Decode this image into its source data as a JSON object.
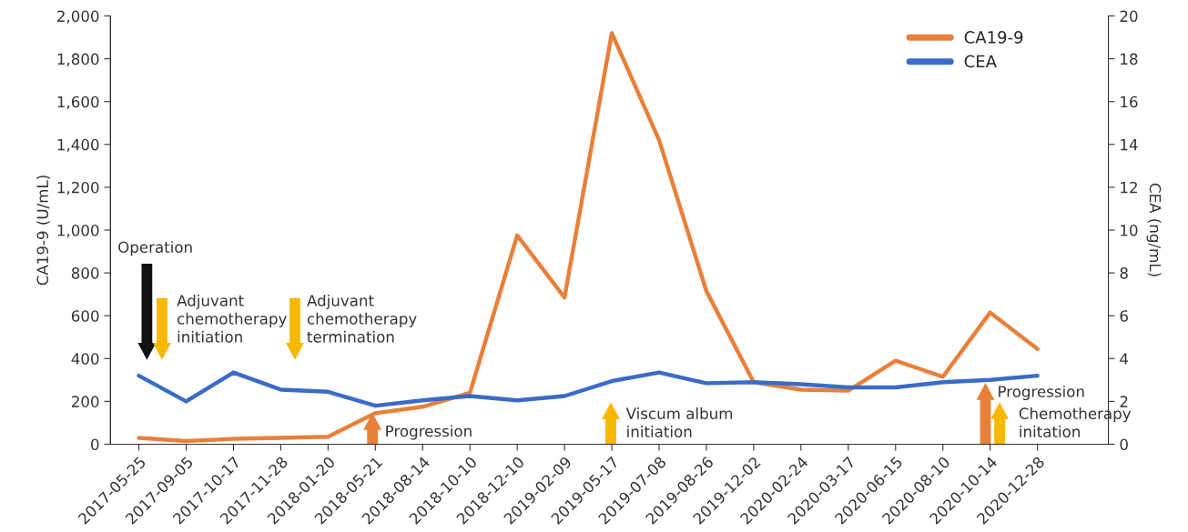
{
  "chart_data": {
    "type": "line",
    "categories": [
      "2017-05-25",
      "2017-09-05",
      "2017-10-17",
      "2017-11-28",
      "2018-01-20",
      "2018-05-21",
      "2018-08-14",
      "2018-10-10",
      "2018-12-10",
      "2019-02-09",
      "2019-05-17",
      "2019-07-08",
      "2019-08-26",
      "2019-12-02",
      "2020-02-24",
      "2020-03-17",
      "2020-06-15",
      "2020-08-10",
      "2020-10-14",
      "2020-12-28"
    ],
    "series": [
      {
        "name": "CA19-9",
        "color": "#e8803a",
        "values": [
          30,
          15,
          25,
          30,
          35,
          145,
          175,
          240,
          975,
          685,
          1920,
          1420,
          715,
          290,
          255,
          250,
          390,
          315,
          615,
          445
        ]
      },
      {
        "name": "CEA",
        "color": "#3a6bc8",
        "axis": "y2",
        "values": [
          3.2,
          2.0,
          3.35,
          2.55,
          2.45,
          1.8,
          2.05,
          2.25,
          2.05,
          2.25,
          2.95,
          3.35,
          2.85,
          2.9,
          2.8,
          2.65,
          2.65,
          2.9,
          3.0,
          3.2
        ]
      }
    ],
    "ylabel": "CA19-9 (U/mL)",
    "y2label": "CEA (ng/mL)",
    "ylim": [
      0,
      2000
    ],
    "yticks": [
      {
        "value": 0,
        "label": "0"
      },
      {
        "value": 200,
        "label": "200"
      },
      {
        "value": 400,
        "label": "400"
      },
      {
        "value": 600,
        "label": "600"
      },
      {
        "value": 800,
        "label": "800"
      },
      {
        "value": 1000,
        "label": "1,000"
      },
      {
        "value": 1200,
        "label": "1,200"
      },
      {
        "value": 1400,
        "label": "1,400"
      },
      {
        "value": 1600,
        "label": "1,600"
      },
      {
        "value": 1800,
        "label": "1,800"
      },
      {
        "value": 2000,
        "label": "2,000"
      }
    ],
    "y2lim": [
      0,
      20
    ],
    "y2ticks": [
      0,
      2,
      4,
      6,
      8,
      10,
      12,
      14,
      16,
      18,
      20
    ],
    "annotations": [
      "Operation",
      "Adjuvant\nchemotherapy\ninitiation",
      "Adjuvant\nchemotherapy\ntermination",
      "Progression",
      "Viscum album\ninitiation",
      "Progression",
      "Chemotherapy\ninitation"
    ],
    "legend": "top right",
    "grid": false,
    "line_style": "solid",
    "marker": "none"
  }
}
